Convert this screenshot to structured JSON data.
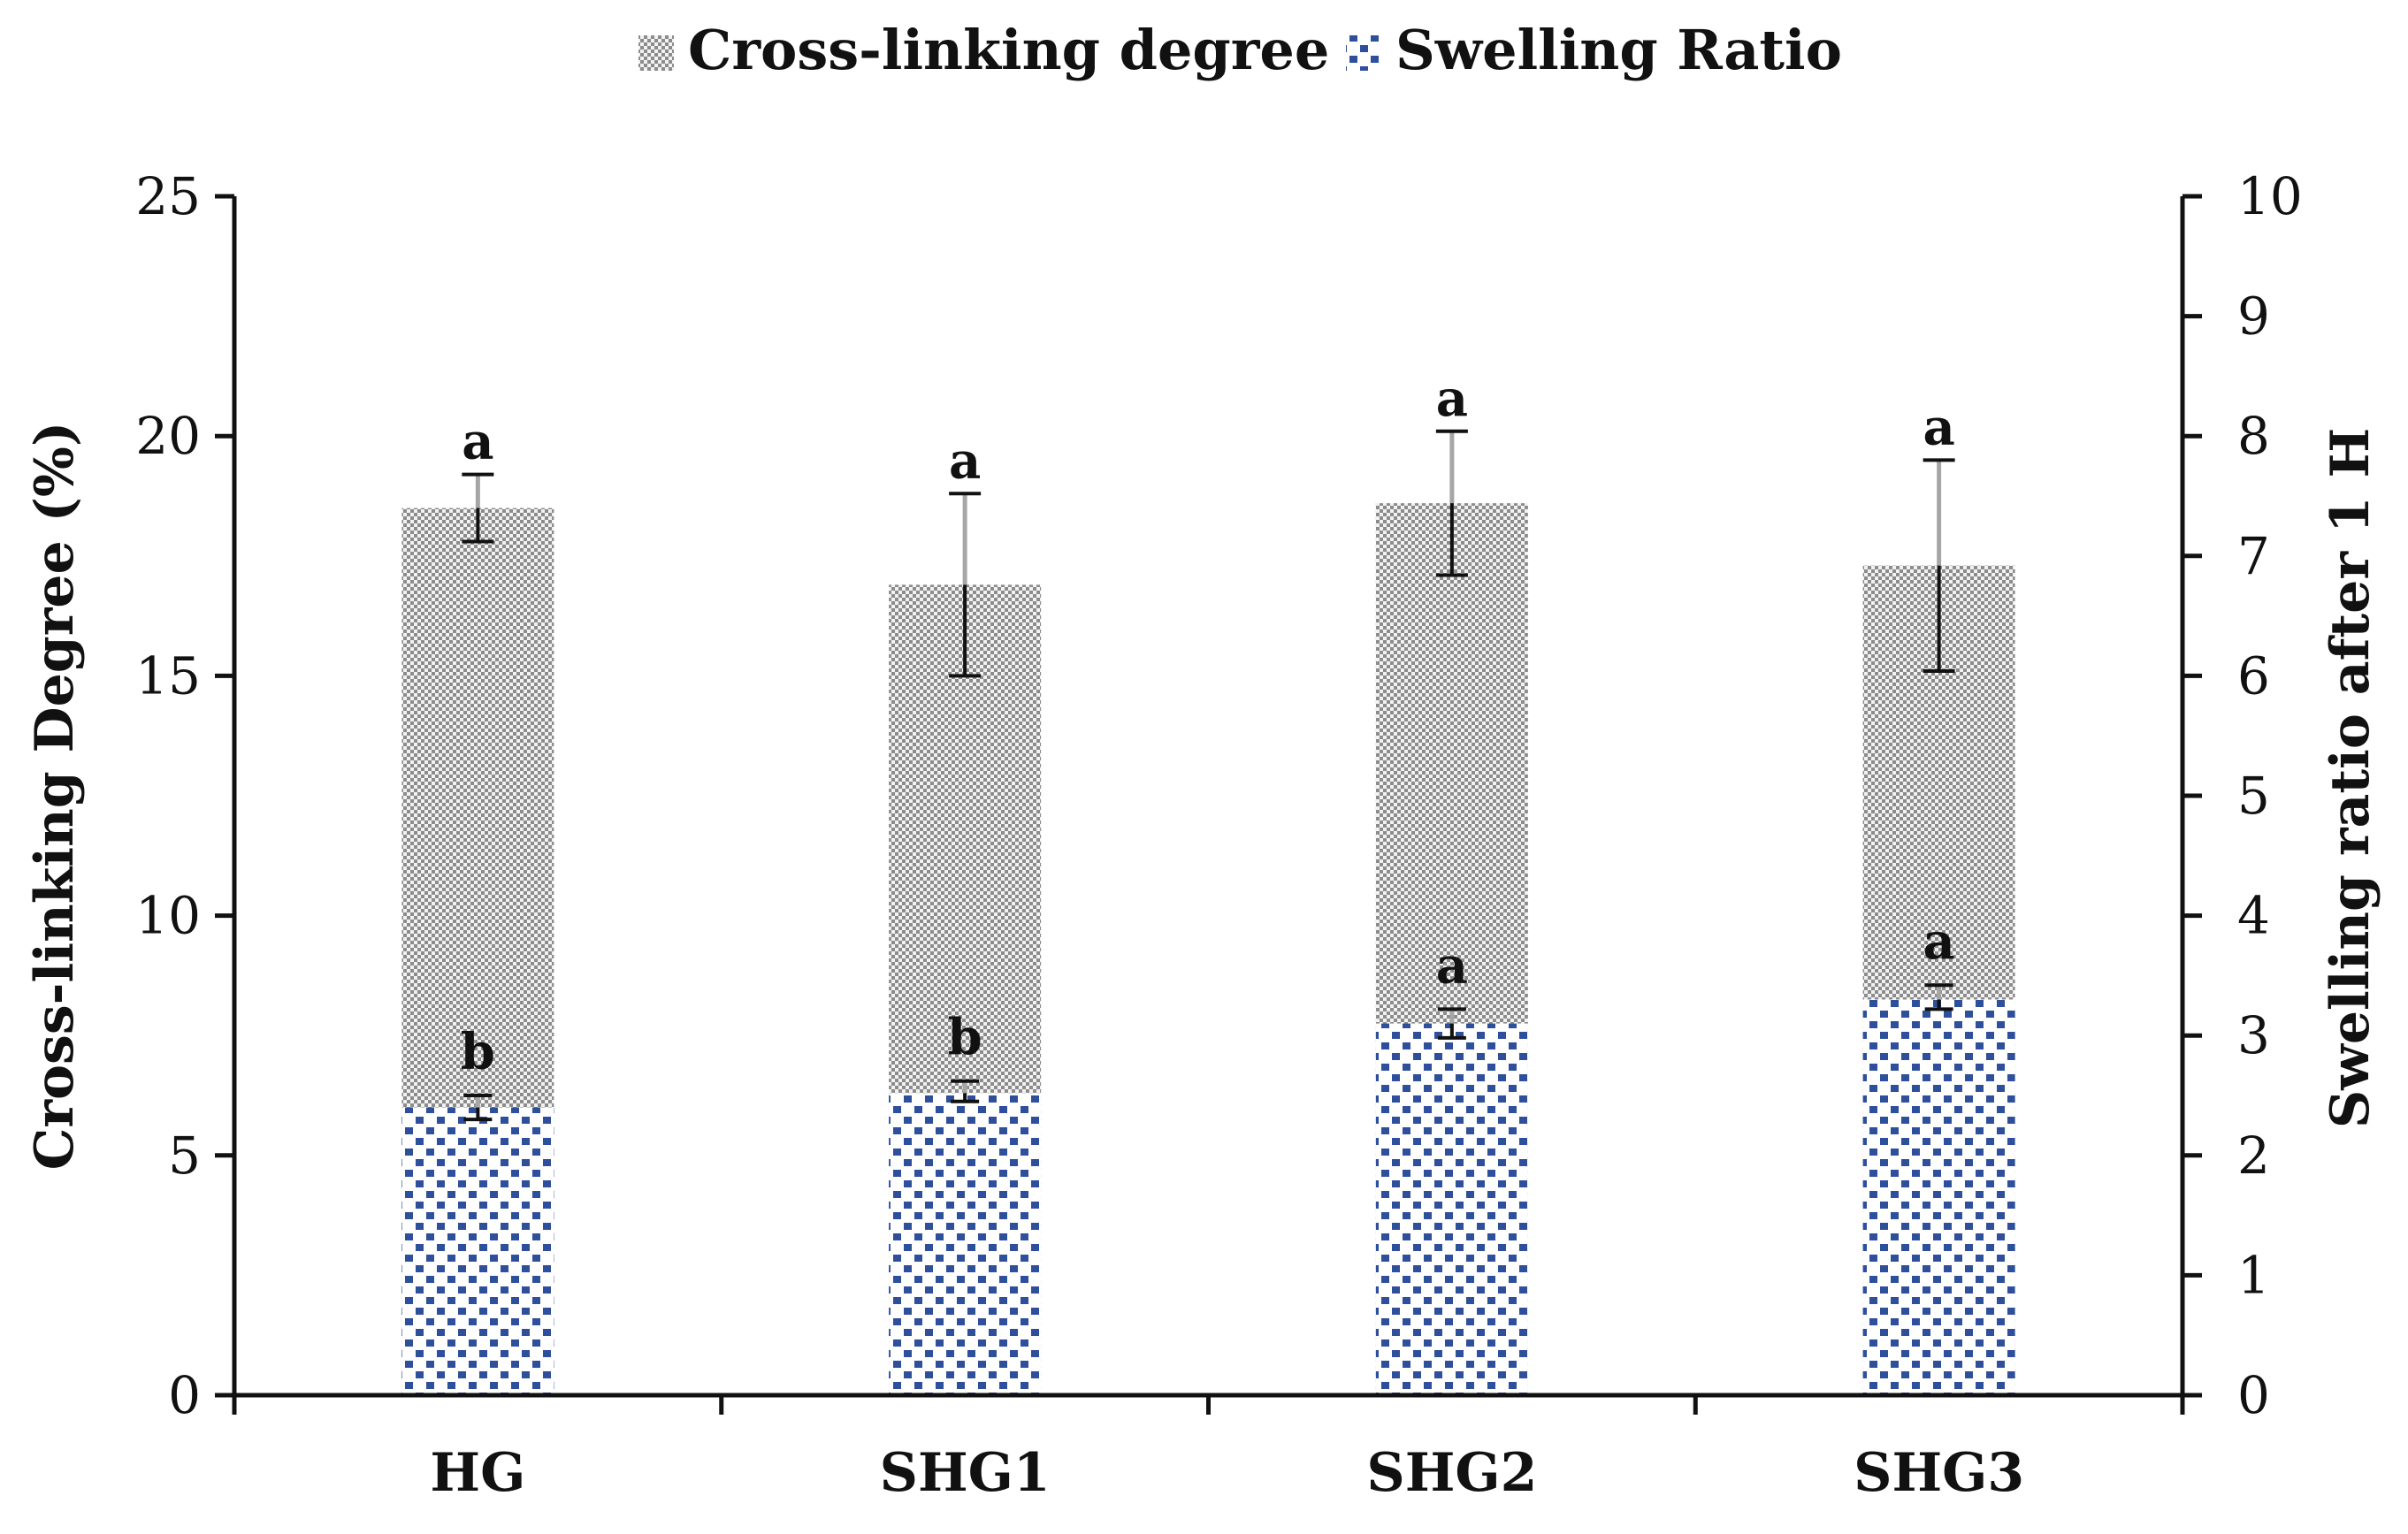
{
  "chart_data": {
    "type": "bar",
    "categories": [
      "HG",
      "SHG1",
      "SHG2",
      "SHG3"
    ],
    "series": [
      {
        "name": "Cross-linking degree",
        "axis": "left",
        "values": [
          18.5,
          16.9,
          18.6,
          17.3
        ],
        "error_low": [
          17.8,
          15.0,
          17.1,
          15.1
        ],
        "error_high": [
          19.2,
          18.8,
          20.1,
          19.5
        ],
        "letters": [
          "a",
          "a",
          "a",
          "a"
        ],
        "color": "#9a9a9a"
      },
      {
        "name": "Swelling Ratio",
        "axis": "right",
        "values": [
          2.4,
          2.52,
          3.1,
          3.3
        ],
        "error_low": [
          2.3,
          2.45,
          2.98,
          3.22
        ],
        "error_high": [
          2.5,
          2.62,
          3.22,
          3.42
        ],
        "letters": [
          "b",
          "b",
          "a",
          "a"
        ],
        "color": "#2e4f9b"
      }
    ],
    "ylabel": "Cross-linking Degree (%)",
    "y2label": "Swelling ratio after 1 H",
    "ylim": [
      0,
      25
    ],
    "y2lim": [
      0,
      10
    ],
    "yticks": [
      "0",
      "5",
      "10",
      "15",
      "20",
      "25"
    ],
    "y2ticks": [
      "0",
      "1",
      "2",
      "3",
      "4",
      "5",
      "6",
      "7",
      "8",
      "9",
      "10"
    ],
    "grid": false,
    "legend_position": "top-center"
  }
}
